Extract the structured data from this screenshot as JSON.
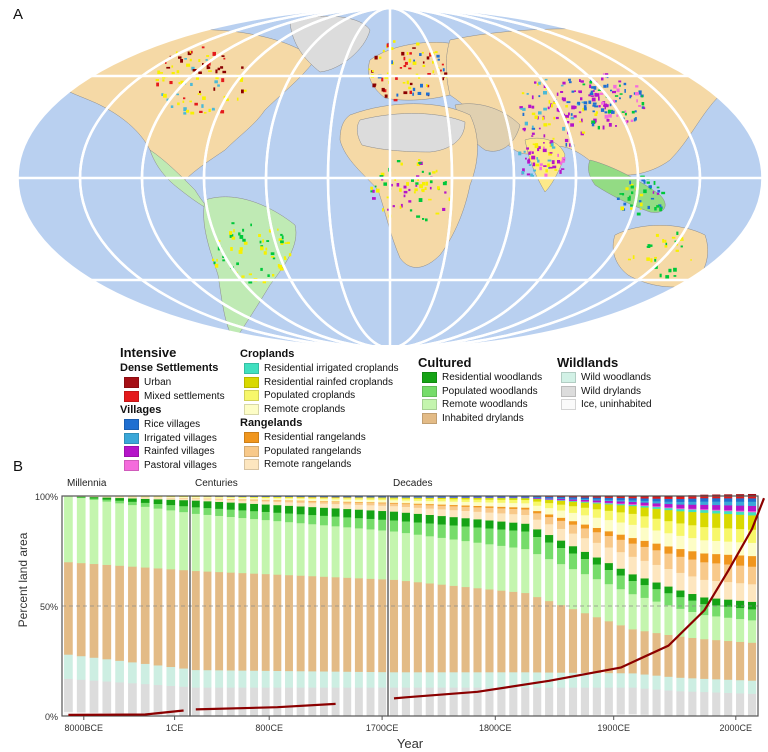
{
  "panels": {
    "a": "A",
    "b": "B"
  },
  "map": {
    "ocean_color": "#b9d0f0",
    "grid_color": "#ffffff",
    "land_colors": [
      "#f5d9a6",
      "#bfeab4",
      "#e0d0b0",
      "#93db84",
      "#fde98a",
      "#dcdcdc",
      "#e8a855",
      "#39b54a",
      "#f7b26b"
    ],
    "hotspot_colors": [
      "#8b0000",
      "#e41a1c",
      "#1f6fd1",
      "#4bb9d6",
      "#b514c9",
      "#f56bdc",
      "#f7f000",
      "#00c83a"
    ]
  },
  "legend": {
    "intensive": {
      "title": "Intensive",
      "dense": {
        "title": "Dense Settlements",
        "items": [
          {
            "label": "Urban",
            "color": "#a50f15"
          },
          {
            "label": "Mixed settlements",
            "color": "#e41a1c"
          }
        ]
      },
      "villages": {
        "title": "Villages",
        "items": [
          {
            "label": "Rice villages",
            "color": "#1f6fd1"
          },
          {
            "label": "Irrigated villages",
            "color": "#3aa7d8"
          },
          {
            "label": "Rainfed villages",
            "color": "#b514c9"
          },
          {
            "label": "Pastoral villages",
            "color": "#f56bdc"
          }
        ]
      }
    },
    "croplands": {
      "title": "Croplands",
      "items": [
        {
          "label": "Residential irrigated croplands",
          "color": "#40e0c0"
        },
        {
          "label": "Residential rainfed croplands",
          "color": "#d9d900"
        },
        {
          "label": "Populated croplands",
          "color": "#f7f76a"
        },
        {
          "label": "Remote croplands",
          "color": "#fdfdc6"
        }
      ]
    },
    "rangelands": {
      "title": "Rangelands",
      "items": [
        {
          "label": "Residential rangelands",
          "color": "#f0961e"
        },
        {
          "label": "Populated rangelands",
          "color": "#f8c98a"
        },
        {
          "label": "Remote rangelands",
          "color": "#fde6bf"
        }
      ]
    },
    "cultured": {
      "title": "Cultured",
      "items": [
        {
          "label": "Residential woodlands",
          "color": "#15a315"
        },
        {
          "label": "Populated woodlands",
          "color": "#76dc6a"
        },
        {
          "label": "Remote woodlands",
          "color": "#c4f5ae"
        },
        {
          "label": "Inhabited drylands",
          "color": "#e3bb86"
        }
      ]
    },
    "wildlands": {
      "title": "Wildlands",
      "items": [
        {
          "label": "Wild woodlands",
          "color": "#d2f1e6"
        },
        {
          "label": "Wild drylands",
          "color": "#dcdcdc"
        },
        {
          "label": "Ice, uninhabited",
          "color": "#fafafa"
        }
      ]
    }
  },
  "chart_data": {
    "type": "area",
    "ylabel": "Percent land area",
    "xlabel": "Year",
    "ylim": [
      0,
      100
    ],
    "y_ticks": [
      "0%",
      "50%",
      "100%"
    ],
    "ref_line": 50,
    "sections": [
      {
        "name": "Millennia",
        "n_bars": 10,
        "x_ticks": [
          {
            "label": "8000BCE",
            "at": 0.17
          },
          {
            "label": "1CE",
            "at": 0.88
          }
        ]
      },
      {
        "name": "Centuries",
        "n_bars": 17,
        "x_ticks": [
          {
            "label": "800CE",
            "at": 0.4
          },
          {
            "label": "1700CE",
            "at": 0.97
          }
        ]
      },
      {
        "name": "Decades",
        "n_bars": 31,
        "x_ticks": [
          {
            "label": "1800CE",
            "at": 0.29
          },
          {
            "label": "1900CE",
            "at": 0.61
          },
          {
            "label": "2000CE",
            "at": 0.94
          }
        ]
      }
    ],
    "categories": [
      "Ice, uninhabited",
      "Wild drylands",
      "Wild woodlands",
      "Inhabited drylands",
      "Remote woodlands",
      "Populated woodlands",
      "Residential woodlands",
      "Remote rangelands",
      "Populated rangelands",
      "Residential rangelands",
      "Remote croplands",
      "Populated croplands",
      "Residential rainfed croplands",
      "Residential irrigated croplands",
      "Pastoral villages",
      "Rainfed villages",
      "Irrigated villages",
      "Rice villages",
      "Mixed settlements",
      "Urban"
    ],
    "colors": [
      "#f5f5f5",
      "#dcdcdc",
      "#cdeee2",
      "#e3bb86",
      "#c4f5ae",
      "#76dc6a",
      "#15a315",
      "#fde6bf",
      "#f8c98a",
      "#f0961e",
      "#fdfdc6",
      "#f7f76a",
      "#d9d900",
      "#40e0c0",
      "#f56bdc",
      "#b514c9",
      "#3aa7d8",
      "#1f6fd1",
      "#e41a1c",
      "#a50f15"
    ],
    "anchors": [
      {
        "pos": 0,
        "values": [
          0,
          15,
          11,
          42,
          30,
          0,
          0,
          0,
          0,
          0,
          0,
          0,
          0,
          0,
          0,
          0,
          0,
          0,
          0,
          0
        ]
      },
      {
        "pos": 10,
        "values": [
          0,
          13,
          8,
          45,
          26,
          3,
          3,
          0.8,
          0.3,
          0,
          0.5,
          0.2,
          0.1,
          0,
          0,
          0,
          0,
          0.1,
          0,
          0
        ]
      },
      {
        "pos": 27,
        "values": [
          0,
          13,
          7,
          42,
          22,
          5,
          4,
          2.5,
          1.2,
          0.3,
          1.2,
          0.8,
          0.4,
          0,
          0,
          0.1,
          0.1,
          0.3,
          0.1,
          0
        ]
      },
      {
        "pos": 38,
        "values": [
          0,
          13,
          7,
          36,
          20,
          8,
          3.5,
          4,
          2.5,
          0.8,
          2,
          1.5,
          0.8,
          0.1,
          0,
          0.2,
          0.2,
          0.3,
          0.1,
          0
        ]
      },
      {
        "pos": 47,
        "values": [
          0,
          12,
          6.5,
          20,
          16,
          6,
          3,
          8,
          6,
          2.5,
          6,
          5,
          3.5,
          0.6,
          0.3,
          1,
          0.7,
          1,
          0.6,
          0.3
        ]
      },
      {
        "pos": 53,
        "values": [
          0,
          11,
          6,
          18,
          11,
          5,
          3,
          8,
          8,
          4,
          6,
          6,
          6.5,
          1.2,
          0.4,
          2,
          1.5,
          1.5,
          1,
          0.5
        ]
      },
      {
        "pos": 58,
        "values": [
          0,
          10,
          6,
          17,
          10,
          5,
          3.5,
          8,
          8,
          5,
          6,
          6,
          6.5,
          1.5,
          0.5,
          2.5,
          2,
          1.5,
          1.2,
          0.8
        ]
      }
    ],
    "urban_line": {
      "name": "Urban",
      "color": "#8b0000",
      "points": [
        [
          0,
          0.5
        ],
        [
          6,
          0.7
        ],
        [
          9,
          2.5
        ],
        [
          10,
          3
        ],
        [
          17,
          4
        ],
        [
          22,
          5.5
        ],
        [
          27,
          8
        ],
        [
          28,
          8.5
        ],
        [
          34,
          11
        ],
        [
          40,
          16
        ],
        [
          46,
          22
        ],
        [
          50,
          32
        ],
        [
          53,
          48
        ],
        [
          55,
          66
        ],
        [
          57,
          85
        ],
        [
          58,
          99
        ]
      ]
    }
  }
}
